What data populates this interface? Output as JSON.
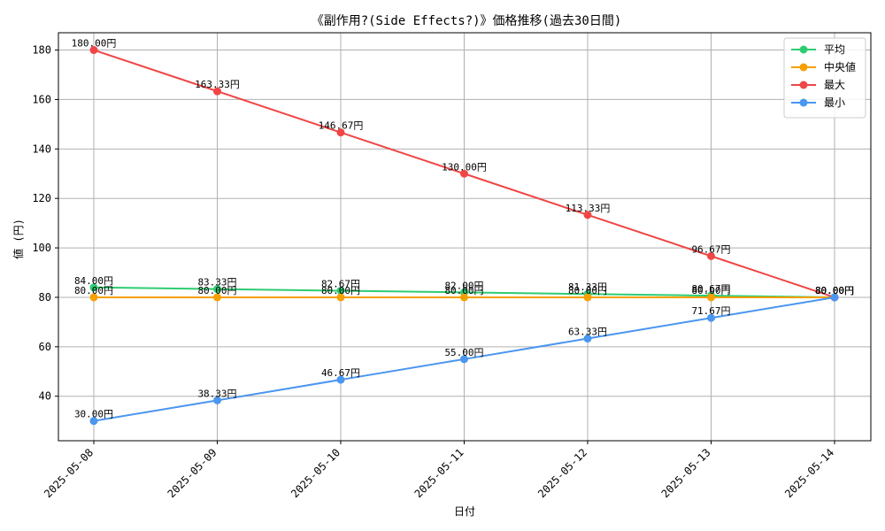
{
  "chart_data": {
    "type": "line",
    "title": "《副作用?(Side Effects?)》価格推移(過去30日間)",
    "xlabel": "日付",
    "ylabel": "値 (円)",
    "ylim": [
      22,
      187
    ],
    "yticks": [
      40,
      60,
      80,
      100,
      120,
      140,
      160,
      180
    ],
    "grid": true,
    "legend_position": "top-right",
    "value_suffix": "円",
    "categories": [
      "2025-05-08",
      "2025-05-09",
      "2025-05-10",
      "2025-05-11",
      "2025-05-12",
      "2025-05-13",
      "2025-05-14"
    ],
    "series": [
      {
        "name": "平均",
        "color": "#2ecc71",
        "values": [
          84.0,
          83.33,
          82.67,
          82.0,
          81.33,
          80.67,
          80.0
        ]
      },
      {
        "name": "中央値",
        "color": "#f5a000",
        "values": [
          80.0,
          80.0,
          80.0,
          80.0,
          80.0,
          80.0,
          80.0
        ]
      },
      {
        "name": "最大",
        "color": "#f04646",
        "values": [
          180.0,
          163.33,
          146.67,
          130.0,
          113.33,
          96.67,
          80.0
        ]
      },
      {
        "name": "最小",
        "color": "#4a96f0",
        "values": [
          30.0,
          38.33,
          46.67,
          55.0,
          63.33,
          71.67,
          80.0
        ]
      }
    ]
  }
}
